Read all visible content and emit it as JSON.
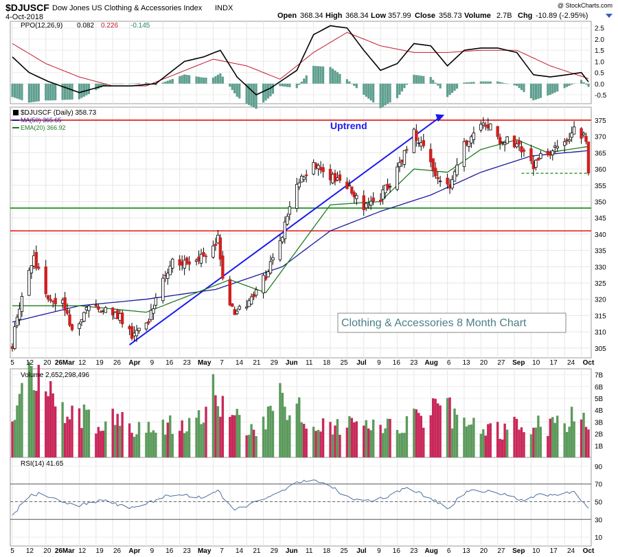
{
  "header": {
    "symbol": "$DJUSCF",
    "name": "Dow Jones US Clothing & Accessories Index",
    "exchange": "INDX",
    "date": "4-Oct-2018",
    "quote_open_label": "Open",
    "quote_open": "368.34",
    "quote_high_label": "High",
    "quote_high": "368.34",
    "quote_low_label": "Low",
    "quote_low": "357.99",
    "quote_close_label": "Close",
    "quote_close": "358.73",
    "quote_volume_label": "Volume",
    "quote_volume": "2.7B",
    "quote_chg_label": "Chg",
    "quote_chg": "-10.89 (-2.95%)",
    "copyright": "@ StockCharts.com"
  },
  "colors": {
    "up": "#ffffff",
    "down": "#d02020",
    "ma50": "#1a1a9e",
    "ema20": "#1e7a1e",
    "vol_up": "#5c9a5c",
    "vol_down": "#c8285a",
    "hist": "#5f9f8f",
    "ppo": "#000000",
    "signal": "#c01a2c",
    "hline_red": "#e01010",
    "hline_green": "#0a8a0a",
    "trend": "#1a1aee",
    "rsi": "#4a6f9e"
  },
  "ppo_panel": {
    "label": "PPO(12,26,9)",
    "v1": "0.082",
    "v2": "0.226",
    "v3": "-0.145",
    "yticks": [
      "2.5",
      "2.0",
      "1.5",
      "1.0",
      "0.5",
      "0.0",
      "-0.5"
    ]
  },
  "price_panel": {
    "label": "$DJUSCF (Daily) 358.73",
    "ma_label": "MA(50) 365.65",
    "ema_label": "EMA(20) 366.92",
    "yticks": [
      "375",
      "370",
      "365",
      "360",
      "355",
      "350",
      "345",
      "340",
      "335",
      "330",
      "325",
      "320",
      "315",
      "310",
      "305"
    ],
    "uptrend_label": "Uptrend",
    "chart_title": "Clothing & Accessories 8 Month Chart"
  },
  "xaxis_labels": [
    "5",
    "12",
    "20",
    "26Mar",
    "12",
    "19",
    "26",
    "Apr",
    "9",
    "16",
    "23",
    "May",
    "7",
    "14",
    "21",
    "29",
    "Jun",
    "11",
    "18",
    "25",
    "Jul",
    "9",
    "16",
    "23",
    "Aug",
    "6",
    "13",
    "20",
    "27",
    "Sep",
    "10",
    "17",
    "24",
    "Oct"
  ],
  "volume_panel": {
    "label": "Volume 2,652,298,496",
    "yticks": [
      "7B",
      "6B",
      "5B",
      "4B",
      "3B",
      "2B",
      "1B"
    ]
  },
  "rsi_panel": {
    "label": "RSI(14) 41.65",
    "yticks": [
      "90",
      "70",
      "50",
      "30",
      "10"
    ]
  },
  "chart_data": {
    "type": "candlestick",
    "title": "Clothing & Accessories 8 Month Chart",
    "start": "2018-02-05",
    "end": "2018-10-04",
    "ylim": [
      302,
      379
    ],
    "last": {
      "open": 368.34,
      "high": 368.34,
      "low": 357.99,
      "close": 358.73,
      "volume": "2.7B",
      "change": -10.89,
      "change_pct": -2.95
    },
    "close_path": [
      [
        "2018-02-05",
        306
      ],
      [
        "2018-02-09",
        322
      ],
      [
        "2018-02-14",
        333
      ],
      [
        "2018-02-20",
        320
      ],
      [
        "2018-02-26",
        319
      ],
      [
        "2018-03-02",
        310
      ],
      [
        "2018-03-09",
        319
      ],
      [
        "2018-03-16",
        316
      ],
      [
        "2018-03-22",
        315
      ],
      [
        "2018-03-27",
        309
      ],
      [
        "2018-04-02",
        312
      ],
      [
        "2018-04-09",
        327
      ],
      [
        "2018-04-13",
        332
      ],
      [
        "2018-04-20",
        330
      ],
      [
        "2018-04-27",
        334
      ],
      [
        "2018-05-02",
        339
      ],
      [
        "2018-05-04",
        327
      ],
      [
        "2018-05-09",
        315
      ],
      [
        "2018-05-15",
        320
      ],
      [
        "2018-05-22",
        327
      ],
      [
        "2018-05-29",
        340
      ],
      [
        "2018-06-01",
        350
      ],
      [
        "2018-06-06",
        358
      ],
      [
        "2018-06-11",
        361
      ],
      [
        "2018-06-18",
        358
      ],
      [
        "2018-06-25",
        355
      ],
      [
        "2018-07-02",
        349
      ],
      [
        "2018-07-09",
        351
      ],
      [
        "2018-07-16",
        360
      ],
      [
        "2018-07-23",
        371
      ],
      [
        "2018-07-27",
        366
      ],
      [
        "2018-07-31",
        360
      ],
      [
        "2018-08-03",
        355
      ],
      [
        "2018-08-07",
        354
      ],
      [
        "2018-08-13",
        367
      ],
      [
        "2018-08-17",
        372
      ],
      [
        "2018-08-23",
        374
      ],
      [
        "2018-08-28",
        369
      ],
      [
        "2018-09-04",
        368
      ],
      [
        "2018-09-10",
        361
      ],
      [
        "2018-09-17",
        365
      ],
      [
        "2018-09-24",
        368
      ],
      [
        "2018-09-28",
        372
      ],
      [
        "2018-10-03",
        369
      ],
      [
        "2018-10-04",
        358.73
      ]
    ],
    "ma50_path": [
      [
        "2018-02-05",
        313
      ],
      [
        "2018-03-05",
        318
      ],
      [
        "2018-04-02",
        320
      ],
      [
        "2018-05-01",
        323
      ],
      [
        "2018-05-29",
        330
      ],
      [
        "2018-06-18",
        341
      ],
      [
        "2018-07-09",
        347
      ],
      [
        "2018-07-30",
        352
      ],
      [
        "2018-08-20",
        359
      ],
      [
        "2018-09-10",
        364
      ],
      [
        "2018-10-04",
        365.65
      ]
    ],
    "ema20_path": [
      [
        "2018-02-05",
        318
      ],
      [
        "2018-03-05",
        318
      ],
      [
        "2018-04-02",
        316
      ],
      [
        "2018-04-23",
        322
      ],
      [
        "2018-05-07",
        326
      ],
      [
        "2018-05-22",
        322
      ],
      [
        "2018-06-04",
        335
      ],
      [
        "2018-06-18",
        349
      ],
      [
        "2018-07-09",
        350
      ],
      [
        "2018-07-23",
        360
      ],
      [
        "2018-08-06",
        359
      ],
      [
        "2018-08-20",
        366
      ],
      [
        "2018-09-04",
        369
      ],
      [
        "2018-09-17",
        365
      ],
      [
        "2018-10-04",
        366.92
      ]
    ],
    "horizontal_lines": [
      {
        "y": 375,
        "color": "red"
      },
      {
        "y": 348,
        "color": "green"
      },
      {
        "y": 341,
        "color": "red"
      }
    ],
    "support_dashed": {
      "y": 358.7,
      "x0": "2018-09-06",
      "x1": "2018-10-04"
    },
    "trendline": {
      "x0": "2018-03-26",
      "y0": 306,
      "x1": "2018-08-03",
      "y1": 376
    },
    "volume_path": [
      [
        "2018-02-05",
        4.5
      ],
      [
        "2018-02-12",
        6.3
      ],
      [
        "2018-02-16",
        7.1
      ],
      [
        "2018-02-23",
        4.0
      ],
      [
        "2018-03-05",
        3.8
      ],
      [
        "2018-03-14",
        2.6
      ],
      [
        "2018-03-22",
        3.4
      ],
      [
        "2018-03-29",
        2.2
      ],
      [
        "2018-04-06",
        3.0
      ],
      [
        "2018-04-16",
        2.6
      ],
      [
        "2018-04-24",
        3.3
      ],
      [
        "2018-05-01",
        6.8
      ],
      [
        "2018-05-04",
        4.0
      ],
      [
        "2018-05-11",
        2.9
      ],
      [
        "2018-05-18",
        2.0
      ],
      [
        "2018-05-29",
        5.0
      ],
      [
        "2018-06-05",
        3.8
      ],
      [
        "2018-06-12",
        2.5
      ],
      [
        "2018-06-21",
        3.0
      ],
      [
        "2018-06-29",
        2.4
      ],
      [
        "2018-07-09",
        2.4
      ],
      [
        "2018-07-18",
        2.5
      ],
      [
        "2018-07-27",
        3.6
      ],
      [
        "2018-08-03",
        5.0
      ],
      [
        "2018-08-10",
        2.9
      ],
      [
        "2018-08-20",
        2.5
      ],
      [
        "2018-08-29",
        2.3
      ],
      [
        "2018-09-07",
        2.8
      ],
      [
        "2018-09-17",
        2.6
      ],
      [
        "2018-09-26",
        3.3
      ],
      [
        "2018-10-04",
        2.65
      ]
    ],
    "rsi_path": [
      [
        "2018-02-05",
        35
      ],
      [
        "2018-02-12",
        56
      ],
      [
        "2018-02-16",
        59
      ],
      [
        "2018-02-26",
        50
      ],
      [
        "2018-03-05",
        46
      ],
      [
        "2018-03-15",
        52
      ],
      [
        "2018-03-26",
        43
      ],
      [
        "2018-04-02",
        48
      ],
      [
        "2018-04-12",
        58
      ],
      [
        "2018-04-26",
        55
      ],
      [
        "2018-05-02",
        62
      ],
      [
        "2018-05-09",
        40
      ],
      [
        "2018-05-16",
        48
      ],
      [
        "2018-05-24",
        55
      ],
      [
        "2018-06-01",
        68
      ],
      [
        "2018-06-08",
        74
      ],
      [
        "2018-06-15",
        73
      ],
      [
        "2018-06-25",
        55
      ],
      [
        "2018-07-03",
        50
      ],
      [
        "2018-07-12",
        55
      ],
      [
        "2018-07-20",
        66
      ],
      [
        "2018-07-31",
        52
      ],
      [
        "2018-08-06",
        42
      ],
      [
        "2018-08-14",
        62
      ],
      [
        "2018-08-22",
        62
      ],
      [
        "2018-08-30",
        58
      ],
      [
        "2018-09-07",
        51
      ],
      [
        "2018-09-14",
        60
      ],
      [
        "2018-09-21",
        56
      ],
      [
        "2018-09-28",
        62
      ],
      [
        "2018-10-04",
        41.65
      ]
    ],
    "ppo_path": [
      [
        "2018-02-05",
        1.2
      ],
      [
        "2018-02-12",
        0.5
      ],
      [
        "2018-02-20",
        0.1
      ],
      [
        "2018-03-05",
        -0.4
      ],
      [
        "2018-03-15",
        -0.1
      ],
      [
        "2018-03-27",
        -0.1
      ],
      [
        "2018-04-06",
        0.0
      ],
      [
        "2018-04-18",
        1.0
      ],
      [
        "2018-04-26",
        1.2
      ],
      [
        "2018-05-03",
        1.5
      ],
      [
        "2018-05-10",
        0.3
      ],
      [
        "2018-05-18",
        -0.5
      ],
      [
        "2018-05-24",
        -0.2
      ],
      [
        "2018-06-04",
        0.6
      ],
      [
        "2018-06-11",
        2.2
      ],
      [
        "2018-06-18",
        2.6
      ],
      [
        "2018-06-25",
        2.5
      ],
      [
        "2018-07-02",
        1.5
      ],
      [
        "2018-07-09",
        0.6
      ],
      [
        "2018-07-16",
        0.9
      ],
      [
        "2018-07-23",
        1.8
      ],
      [
        "2018-07-30",
        1.7
      ],
      [
        "2018-08-06",
        0.8
      ],
      [
        "2018-08-13",
        1.5
      ],
      [
        "2018-08-20",
        1.6
      ],
      [
        "2018-08-27",
        1.6
      ],
      [
        "2018-09-04",
        1.4
      ],
      [
        "2018-09-11",
        0.4
      ],
      [
        "2018-09-18",
        0.3
      ],
      [
        "2018-09-25",
        0.4
      ],
      [
        "2018-10-01",
        0.5
      ],
      [
        "2018-10-04",
        0.082
      ]
    ],
    "ppo_signal_path": [
      [
        "2018-02-05",
        1.8
      ],
      [
        "2018-02-19",
        0.9
      ],
      [
        "2018-03-05",
        0.3
      ],
      [
        "2018-03-19",
        -0.1
      ],
      [
        "2018-04-02",
        -0.1
      ],
      [
        "2018-04-16",
        0.5
      ],
      [
        "2018-04-30",
        1.1
      ],
      [
        "2018-05-14",
        0.8
      ],
      [
        "2018-05-28",
        0.2
      ],
      [
        "2018-06-11",
        1.4
      ],
      [
        "2018-06-25",
        2.3
      ],
      [
        "2018-07-09",
        1.7
      ],
      [
        "2018-07-23",
        1.4
      ],
      [
        "2018-08-06",
        1.4
      ],
      [
        "2018-08-20",
        1.5
      ],
      [
        "2018-09-04",
        1.5
      ],
      [
        "2018-09-18",
        0.8
      ],
      [
        "2018-10-04",
        0.226
      ]
    ],
    "volume_ylim": [
      0,
      7.5
    ],
    "rsi_ylim": [
      0,
      100
    ],
    "ppo_ylim": [
      -0.9,
      2.8
    ]
  }
}
